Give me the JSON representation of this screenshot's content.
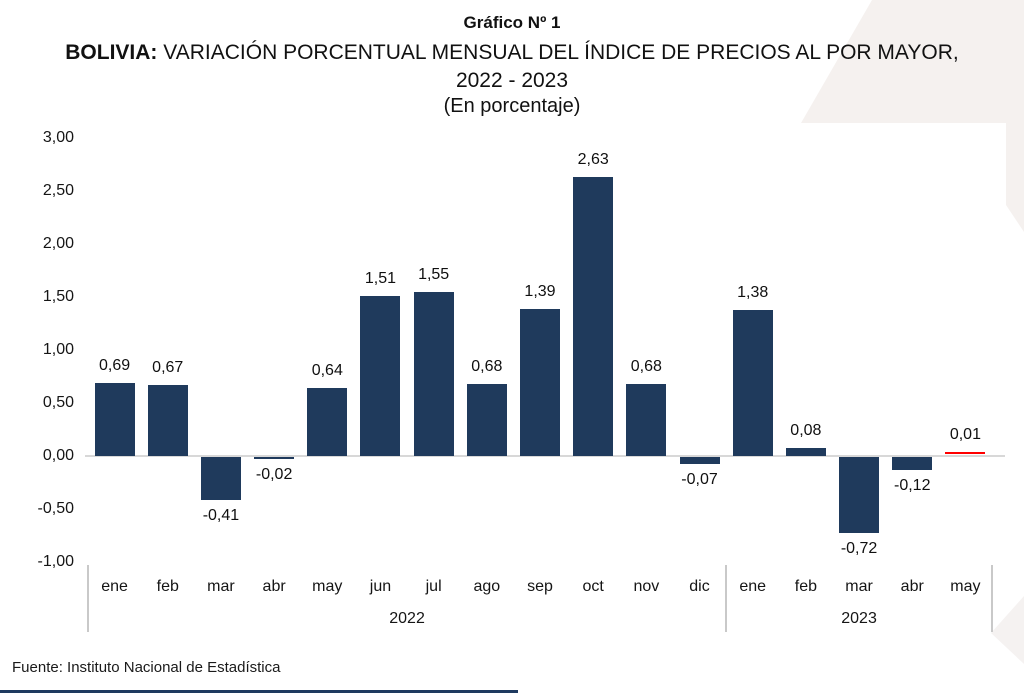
{
  "header": {
    "title": "Gráfico Nº 1",
    "subtitle_bold": "BOLIVIA:",
    "subtitle_rest": " VARIACIÓN PORCENTUAL MENSUAL DEL ÍNDICE DE PRECIOS AL POR MAYOR,",
    "subtitle_years": "2022 - 2023",
    "unit_note": "(En porcentaje)"
  },
  "chart_data": {
    "type": "bar",
    "title": "Gráfico Nº 1",
    "subtitle": "BOLIVIA: VARIACIÓN PORCENTUAL MENSUAL DEL ÍNDICE DE PRECIOS AL POR MAYOR, 2022 - 2023",
    "unit": "(En porcentaje)",
    "ylim": [
      -1.0,
      3.0
    ],
    "ytick_step": 0.5,
    "ytick_labels": [
      "3,00",
      "2,50",
      "2,00",
      "1,50",
      "1,00",
      "0,50",
      "0,00",
      "-0,50",
      "-1,00"
    ],
    "grid": false,
    "legend": false,
    "bar_color": "#1f3a5c",
    "highlight_color": "#ff0000",
    "zero_line_color": "#d8d8d8",
    "groups": [
      {
        "year": "2022",
        "points": [
          {
            "month": "ene",
            "value": 0.69,
            "label": "0,69"
          },
          {
            "month": "feb",
            "value": 0.67,
            "label": "0,67"
          },
          {
            "month": "mar",
            "value": -0.41,
            "label": "-0,41"
          },
          {
            "month": "abr",
            "value": -0.02,
            "label": "-0,02"
          },
          {
            "month": "may",
            "value": 0.64,
            "label": "0,64"
          },
          {
            "month": "jun",
            "value": 1.51,
            "label": "1,51"
          },
          {
            "month": "jul",
            "value": 1.55,
            "label": "1,55"
          },
          {
            "month": "ago",
            "value": 0.68,
            "label": "0,68"
          },
          {
            "month": "sep",
            "value": 1.39,
            "label": "1,39"
          },
          {
            "month": "oct",
            "value": 2.63,
            "label": "2,63"
          },
          {
            "month": "nov",
            "value": 0.68,
            "label": "0,68"
          },
          {
            "month": "dic",
            "value": -0.07,
            "label": "-0,07"
          }
        ]
      },
      {
        "year": "2023",
        "points": [
          {
            "month": "ene",
            "value": 1.38,
            "label": "1,38"
          },
          {
            "month": "feb",
            "value": 0.08,
            "label": "0,08"
          },
          {
            "month": "mar",
            "value": -0.72,
            "label": "-0,72"
          },
          {
            "month": "abr",
            "value": -0.12,
            "label": "-0,12"
          },
          {
            "month": "may",
            "value": 0.01,
            "label": "0,01",
            "highlight": true
          }
        ]
      }
    ]
  },
  "footer": {
    "source": "Fuente: Instituto Nacional de Estadística"
  }
}
